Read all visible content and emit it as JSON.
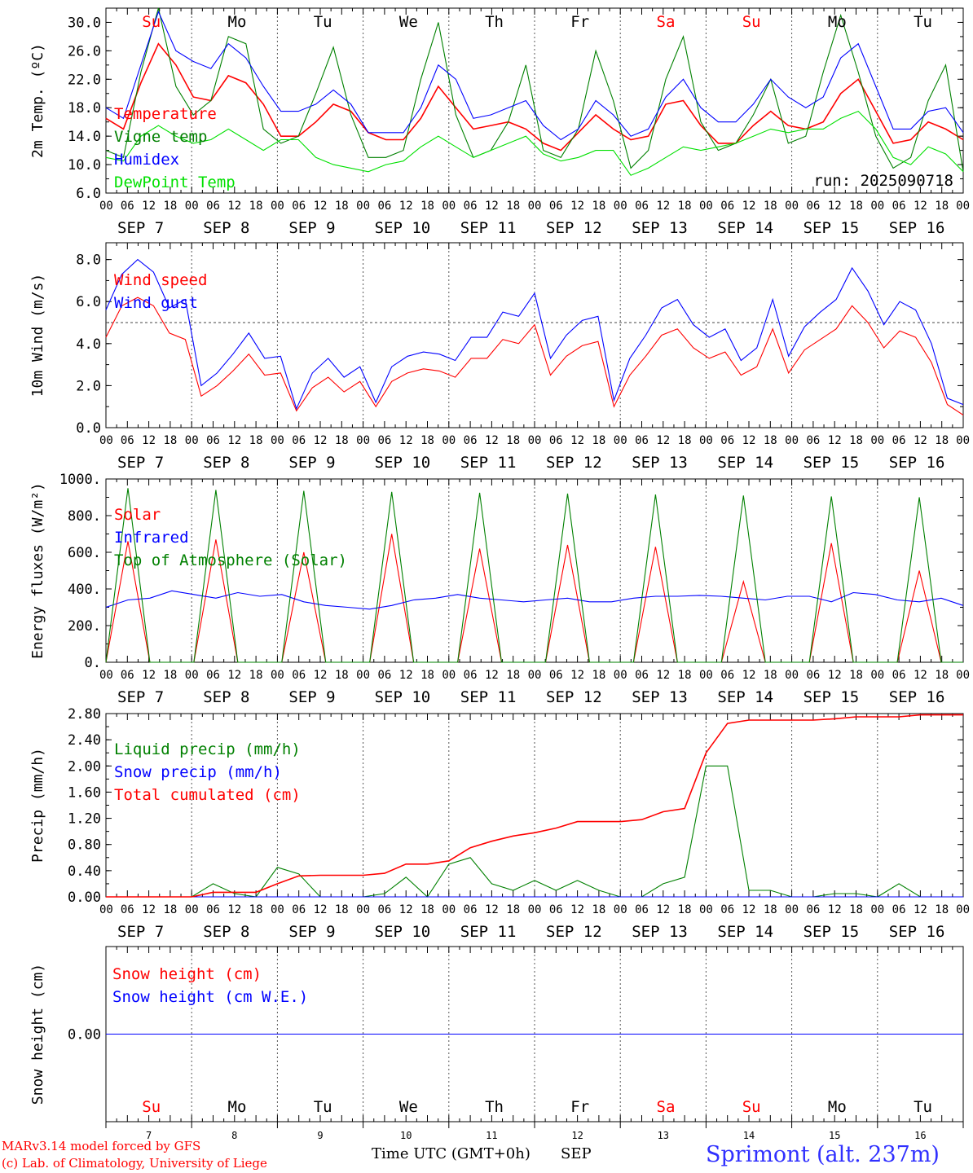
{
  "run_label": "run: 2025090718",
  "day_names": [
    "Su",
    "Mo",
    "Tu",
    "We",
    "Th",
    "Fr",
    "Sa",
    "Su",
    "Mo",
    "Tu"
  ],
  "weekend_flags": [
    true,
    false,
    false,
    false,
    false,
    false,
    true,
    true,
    false,
    false
  ],
  "hour_ticks": [
    "00",
    "06",
    "12",
    "18"
  ],
  "date_labels": [
    "SEP  7",
    "SEP  8",
    "SEP  9",
    "SEP 10",
    "SEP 11",
    "SEP 12",
    "SEP 13",
    "SEP 14",
    "SEP 15",
    "SEP 16"
  ],
  "day_numbers": [
    "7",
    "8",
    "9",
    "10",
    "11",
    "12",
    "13",
    "14",
    "15",
    "16"
  ],
  "footer": {
    "model": "MARv3.14 model forced by GFS",
    "copyright": "(c) Lab. of Climatology, University of Liege",
    "xlabel": "Time UTC (GMT+0h)",
    "month": "SEP",
    "station": "Sprimont (alt. 237m)"
  },
  "colors": {
    "red": "#ff0000",
    "blue": "#0000ff",
    "green": "#008000",
    "lightgreen": "#00e000",
    "weekend": "#ff0000"
  },
  "chart_data": [
    {
      "id": "temp",
      "type": "line",
      "ylabel": "2m Temp. (ºC)",
      "ylim": [
        6,
        32
      ],
      "yticks": [
        6,
        10,
        14,
        18,
        22,
        26,
        30
      ],
      "ytick_labels": [
        "6.0",
        "10.0",
        "14.0",
        "18.0",
        "22.0",
        "26.0",
        "30.0"
      ],
      "x_start_hour": 0,
      "x_step_hours": 6,
      "series": [
        {
          "name": "Temperature",
          "color": "#ff0000",
          "values": [
            16.5,
            15,
            21.5,
            27,
            24,
            19.5,
            19,
            22.5,
            21.5,
            18.5,
            14,
            14,
            16,
            18.5,
            17.5,
            14.5,
            13.5,
            13.5,
            16.5,
            21,
            18,
            15,
            15.5,
            16,
            15,
            13,
            12,
            14.5,
            17,
            15,
            13.5,
            14,
            18.5,
            19,
            15.5,
            13,
            13,
            15.5,
            17.5,
            15.5,
            15,
            16,
            20,
            22,
            17.5,
            13,
            13.5,
            16,
            15,
            13.5
          ]
        },
        {
          "name": "Vigne temp",
          "color": "#008000",
          "values": [
            12,
            11,
            23,
            32,
            21,
            17,
            19,
            28,
            27,
            15,
            13,
            14,
            20,
            26.5,
            17,
            11,
            11,
            12,
            22,
            30,
            17,
            11,
            12,
            16,
            24,
            12,
            11,
            15,
            26,
            19,
            9.5,
            12,
            22,
            28,
            16,
            12,
            13,
            17,
            22,
            13,
            14,
            23,
            31,
            23,
            14,
            9.5,
            11,
            19,
            24,
            9
          ]
        },
        {
          "name": "Humidex",
          "color": "#0000ff",
          "values": [
            18,
            16.5,
            24,
            31.5,
            26,
            24.5,
            23.5,
            27,
            25,
            21,
            17.5,
            17.5,
            18.5,
            20.5,
            18.5,
            14.5,
            14.5,
            14.5,
            18,
            24,
            22,
            16.5,
            17,
            18,
            19,
            15.5,
            13.5,
            15,
            19,
            17,
            14,
            15,
            19.5,
            22,
            18,
            16,
            16,
            18.5,
            22,
            19.5,
            18,
            19.5,
            25,
            27,
            21,
            15,
            15,
            17.5,
            18,
            14.5
          ]
        },
        {
          "name": "DewPoint Temp",
          "color": "#00e000",
          "values": [
            11,
            10.5,
            14,
            15.5,
            14,
            13,
            13.5,
            15,
            13.5,
            12,
            13.5,
            13.5,
            11,
            10,
            9.5,
            9,
            10,
            10.5,
            12.5,
            14,
            12.5,
            11,
            12,
            13,
            14,
            11.5,
            10.5,
            11,
            12,
            12,
            8.5,
            9.5,
            11,
            12.5,
            12,
            12.5,
            13,
            14,
            15,
            14.5,
            15,
            15,
            16.5,
            17.5,
            15,
            11,
            10,
            12.5,
            11.5,
            9
          ]
        }
      ]
    },
    {
      "id": "wind",
      "type": "line",
      "ylabel": "10m Wind (m/s)",
      "ylim": [
        0,
        8.8
      ],
      "yticks": [
        0,
        2,
        4,
        6,
        8
      ],
      "ytick_labels": [
        "0.0",
        "2.0",
        "4.0",
        "6.0",
        "8.0"
      ],
      "reference_line": 5,
      "x_start_hour": 0,
      "x_step_hours": 6,
      "series": [
        {
          "name": "Wind speed",
          "color": "#ff0000",
          "values": [
            4.3,
            5.8,
            6.2,
            5.8,
            4.5,
            4.2,
            1.5,
            2.0,
            2.7,
            3.5,
            2.5,
            2.6,
            0.8,
            1.9,
            2.4,
            1.7,
            2.2,
            1.0,
            2.2,
            2.6,
            2.8,
            2.7,
            2.4,
            3.3,
            3.3,
            4.2,
            4.0,
            4.9,
            2.5,
            3.4,
            3.9,
            4.1,
            1.0,
            2.5,
            3.4,
            4.4,
            4.7,
            3.8,
            3.3,
            3.6,
            2.5,
            2.9,
            4.7,
            2.6,
            3.7,
            4.2,
            4.7,
            5.8,
            5.0,
            3.8,
            4.6,
            4.3,
            3.1,
            1.1,
            0.6
          ]
        },
        {
          "name": "Wind gust",
          "color": "#0000ff",
          "values": [
            5.6,
            7.3,
            8.0,
            7.4,
            5.7,
            6.1,
            2.0,
            2.6,
            3.5,
            4.5,
            3.3,
            3.4,
            0.9,
            2.6,
            3.3,
            2.4,
            2.9,
            1.2,
            2.9,
            3.4,
            3.6,
            3.5,
            3.2,
            4.3,
            4.3,
            5.5,
            5.3,
            6.4,
            3.3,
            4.4,
            5.1,
            5.3,
            1.3,
            3.3,
            4.4,
            5.7,
            6.1,
            4.9,
            4.3,
            4.7,
            3.2,
            3.8,
            6.1,
            3.4,
            4.8,
            5.5,
            6.1,
            7.6,
            6.5,
            4.9,
            6.0,
            5.6,
            4.0,
            1.4,
            1.1
          ]
        }
      ]
    },
    {
      "id": "energy",
      "type": "line",
      "ylabel": "Energy fluxes (W/m²)",
      "ylim": [
        0,
        1000
      ],
      "yticks": [
        0,
        200,
        400,
        600,
        800,
        1000
      ],
      "ytick_labels": [
        "0.",
        "200.",
        "400.",
        "600.",
        "800.",
        "1000."
      ],
      "x_start_hour": 0,
      "x_step_hours": 6,
      "series": [
        {
          "name": "Solar",
          "color": "#ff0000",
          "values": [
            0,
            660,
            0,
            0,
            0,
            670,
            0,
            0,
            0,
            600,
            0,
            0,
            0,
            700,
            0,
            0,
            0,
            620,
            0,
            0,
            0,
            640,
            0,
            0,
            0,
            630,
            0,
            0,
            0,
            440,
            0,
            0,
            0,
            650,
            0,
            0,
            0,
            500,
            0,
            0
          ]
        },
        {
          "name": "Infrared",
          "color": "#0000ff",
          "values": [
            300,
            340,
            350,
            390,
            370,
            350,
            380,
            360,
            370,
            330,
            310,
            300,
            290,
            310,
            340,
            350,
            370,
            350,
            340,
            330,
            340,
            350,
            330,
            330,
            350,
            360,
            360,
            365,
            360,
            350,
            340,
            360,
            360,
            330,
            380,
            370,
            340,
            330,
            350,
            310
          ]
        },
        {
          "name": "Top of Atmosphere (Solar)",
          "color": "#008000",
          "values": [
            0,
            950,
            0,
            0,
            0,
            940,
            0,
            0,
            0,
            935,
            0,
            0,
            0,
            930,
            0,
            0,
            0,
            925,
            0,
            0,
            0,
            920,
            0,
            0,
            0,
            915,
            0,
            0,
            0,
            910,
            0,
            0,
            0,
            905,
            0,
            0,
            0,
            900,
            0,
            0
          ]
        }
      ]
    },
    {
      "id": "precip",
      "type": "line",
      "ylabel": "Precip (mm/h)",
      "ylim": [
        0,
        2.8
      ],
      "yticks": [
        0,
        0.4,
        0.8,
        1.2,
        1.6,
        2.0,
        2.4,
        2.8
      ],
      "ytick_labels": [
        "0.00",
        "0.40",
        "0.80",
        "1.20",
        "1.60",
        "2.00",
        "2.40",
        "2.80"
      ],
      "x_start_hour": 0,
      "x_step_hours": 6,
      "series": [
        {
          "name": "Liquid precip (mm/h)",
          "color": "#008000",
          "values": [
            0,
            0,
            0,
            0,
            0,
            0.2,
            0.05,
            0,
            0.45,
            0.35,
            0,
            0,
            0,
            0.05,
            0.3,
            0,
            0.5,
            0.6,
            0.2,
            0.1,
            0.25,
            0.1,
            0.25,
            0.1,
            0,
            0,
            0.2,
            0.3,
            2.0,
            2.0,
            0.1,
            0.1,
            0,
            0,
            0.05,
            0.05,
            0,
            0.2,
            0,
            0,
            0
          ]
        },
        {
          "name": "Snow precip (mm/h)",
          "color": "#0000ff",
          "values": [
            0,
            0,
            0,
            0,
            0,
            0,
            0,
            0,
            0,
            0,
            0,
            0,
            0,
            0,
            0,
            0,
            0,
            0,
            0,
            0,
            0,
            0,
            0,
            0,
            0,
            0,
            0,
            0,
            0,
            0,
            0,
            0,
            0,
            0,
            0,
            0,
            0,
            0,
            0,
            0,
            0
          ]
        },
        {
          "name": "Total cumulated (cm)",
          "color": "#ff0000",
          "values": [
            0,
            0,
            0,
            0,
            0,
            0.07,
            0.07,
            0.07,
            0.2,
            0.32,
            0.33,
            0.33,
            0.33,
            0.36,
            0.5,
            0.5,
            0.55,
            0.75,
            0.85,
            0.93,
            0.98,
            1.05,
            1.15,
            1.15,
            1.15,
            1.18,
            1.3,
            1.35,
            2.2,
            2.65,
            2.7,
            2.7,
            2.7,
            2.7,
            2.72,
            2.75,
            2.75,
            2.75,
            2.78,
            2.78,
            2.78
          ]
        }
      ]
    },
    {
      "id": "snow",
      "type": "line",
      "ylabel": "Snow height (cm)",
      "ylim": [
        -1,
        1
      ],
      "yticks": [
        0
      ],
      "ytick_labels": [
        "0.00"
      ],
      "x_start_hour": 0,
      "x_step_hours": 6,
      "series": [
        {
          "name": "Snow height (cm)",
          "color": "#ff0000",
          "values": [
            0,
            0
          ]
        },
        {
          "name": "Snow height (cm W.E.)",
          "color": "#0000ff",
          "values": [
            0,
            0
          ]
        }
      ]
    }
  ]
}
